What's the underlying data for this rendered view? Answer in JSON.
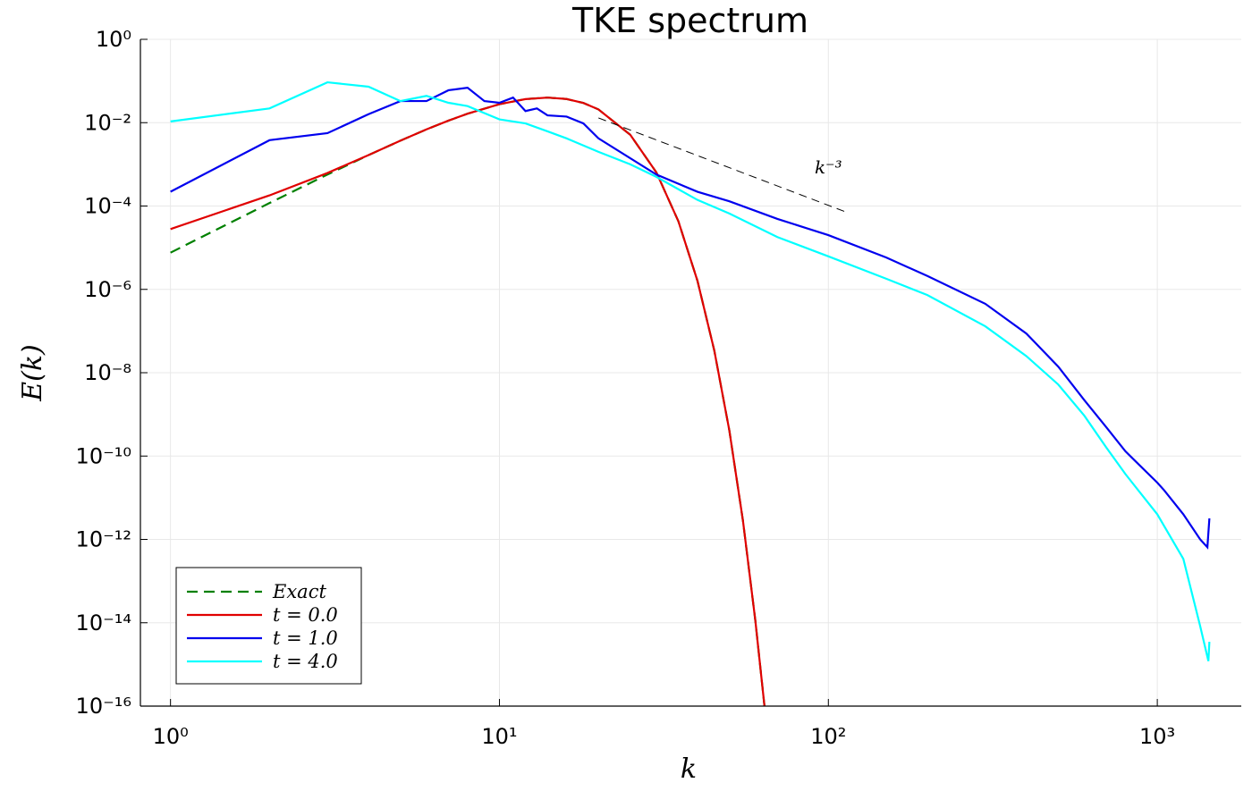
{
  "chart_data": {
    "type": "line",
    "title": "TKE spectrum",
    "x_label": "k",
    "y_label": "E(k)",
    "log_x": true,
    "log_y": true,
    "grid": true,
    "legend_position": "lower-left",
    "xlim": [
      0.81,
      1800
    ],
    "ylim": [
      1e-16,
      1
    ],
    "xticks": [
      {
        "value": 1,
        "label": "10⁰"
      },
      {
        "value": 10,
        "label": "10¹"
      },
      {
        "value": 100,
        "label": "10²"
      },
      {
        "value": 1000,
        "label": "10³"
      }
    ],
    "yticks": [
      {
        "value": 1,
        "label": "10⁰"
      },
      {
        "value": 0.01,
        "label": "10⁻²"
      },
      {
        "value": 0.0001,
        "label": "10⁻⁴"
      },
      {
        "value": 1e-06,
        "label": "10⁻⁶"
      },
      {
        "value": 1e-08,
        "label": "10⁻⁸"
      },
      {
        "value": 1e-10,
        "label": "10⁻¹⁰"
      },
      {
        "value": 1e-12,
        "label": "10⁻¹²"
      },
      {
        "value": 1e-14,
        "label": "10⁻¹⁴"
      },
      {
        "value": 1e-16,
        "label": "10⁻¹⁶"
      }
    ],
    "series": [
      {
        "name": "Exact",
        "color": "#008000",
        "dash": true,
        "x": [
          1,
          2,
          3,
          4,
          5,
          6,
          7,
          8,
          10,
          12,
          14,
          16,
          18,
          20,
          25,
          30,
          35,
          40,
          45,
          50,
          55,
          60,
          64
        ],
        "values": [
          7.6e-06,
          0.000118,
          0.00057,
          0.00167,
          0.0037,
          0.0069,
          0.0112,
          0.0164,
          0.0278,
          0.0368,
          0.04,
          0.037,
          0.0297,
          0.0208,
          0.0051,
          0.00064,
          4.3e-05,
          1.6e-06,
          3.4e-08,
          4.1e-10,
          2.8e-12,
          1.1e-14,
          9.3e-17
        ]
      },
      {
        "name": "t = 0.0",
        "color": "#e00000",
        "dash": false,
        "x": [
          1,
          2,
          3,
          4,
          5,
          6,
          7,
          8,
          10,
          12,
          14,
          16,
          18,
          20,
          25,
          30,
          35,
          40,
          45,
          50,
          55,
          60,
          64
        ],
        "values": [
          2.8e-05,
          0.00018,
          0.00062,
          0.00167,
          0.0037,
          0.0069,
          0.0112,
          0.0164,
          0.0278,
          0.0368,
          0.04,
          0.037,
          0.0297,
          0.0208,
          0.0051,
          0.00064,
          4.3e-05,
          1.6e-06,
          3.4e-08,
          4.1e-10,
          2.8e-12,
          1.1e-14,
          9.3e-17
        ]
      },
      {
        "name": "t = 1.0",
        "color": "#0000ee",
        "dash": false,
        "x": [
          1,
          2,
          3,
          4,
          5,
          6,
          7,
          8,
          9,
          10,
          11,
          12,
          13,
          14,
          16,
          18,
          20,
          30,
          40,
          50,
          70,
          100,
          150,
          200,
          300,
          400,
          500,
          600,
          700,
          800,
          1000,
          1050,
          1200,
          1350,
          1420,
          1440
        ],
        "values": [
          0.00022,
          0.0038,
          0.0056,
          0.016,
          0.033,
          0.033,
          0.06,
          0.069,
          0.033,
          0.03,
          0.04,
          0.019,
          0.022,
          0.015,
          0.014,
          0.0096,
          0.0042,
          0.00057,
          0.00022,
          0.00013,
          4.9e-05,
          2e-05,
          5.8e-06,
          2.1e-06,
          4.5e-07,
          8.7e-08,
          1.4e-08,
          2.2e-09,
          4.9e-10,
          1.3e-10,
          2.3e-11,
          1.5e-11,
          4e-12,
          1e-12,
          6.5e-13,
          3.2e-12
        ]
      },
      {
        "name": "t = 4.0",
        "color": "#00ffff",
        "dash": false,
        "x": [
          1,
          2,
          3,
          4,
          5,
          6,
          7,
          8,
          10,
          12,
          14,
          16,
          20,
          25,
          30,
          40,
          50,
          70,
          100,
          150,
          200,
          300,
          400,
          500,
          600,
          700,
          800,
          1000,
          1200,
          1350,
          1430,
          1440
        ],
        "values": [
          0.0107,
          0.022,
          0.093,
          0.073,
          0.033,
          0.044,
          0.03,
          0.025,
          0.012,
          0.0096,
          0.0062,
          0.0042,
          0.002,
          0.001,
          0.0005,
          0.00014,
          6.6e-05,
          1.8e-05,
          6.2e-06,
          1.8e-06,
          7.3e-07,
          1.3e-07,
          2.5e-08,
          5.2e-09,
          9.3e-10,
          1.6e-10,
          3.7e-11,
          4e-12,
          3.4e-13,
          8.3e-15,
          1.2e-15,
          3.5e-15
        ]
      }
    ],
    "reference_line": {
      "label": "k⁻³",
      "color": "#000000",
      "x": [
        20,
        112
      ],
      "values": [
        0.013,
        7.4e-05
      ],
      "label_x": 100,
      "label_y": 0.0006
    }
  }
}
